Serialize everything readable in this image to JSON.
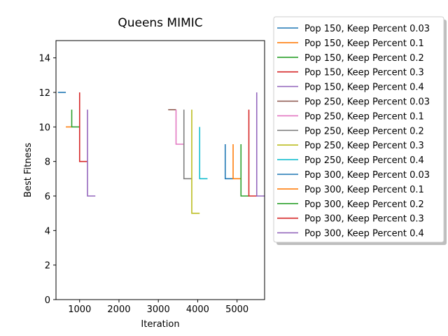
{
  "chart_data": {
    "type": "line",
    "title": "Queens MIMIC",
    "xlabel": "Iteration",
    "ylabel": "Best Fitness",
    "xlim": [
      400,
      5700
    ],
    "ylim": [
      0,
      15
    ],
    "xticks": [
      1000,
      2000,
      3000,
      4000,
      5000
    ],
    "yticks": [
      0,
      2,
      4,
      6,
      8,
      10,
      12,
      14
    ],
    "grid": false,
    "legend_position": "outside-right",
    "series": [
      {
        "name": "Pop 150, Keep Percent 0.03",
        "color": "#1f77b4",
        "x": [
          450,
          650
        ],
        "y": [
          12,
          12
        ]
      },
      {
        "name": "Pop 150, Keep Percent 0.1",
        "color": "#ff7f0e",
        "x": [
          650,
          800
        ],
        "y": [
          10,
          10
        ]
      },
      {
        "name": "Pop 150, Keep Percent 0.2",
        "color": "#2ca02c",
        "x": [
          800,
          800,
          1000
        ],
        "y": [
          11,
          10,
          10
        ]
      },
      {
        "name": "Pop 150, Keep Percent 0.3",
        "color": "#d62728",
        "x": [
          1000,
          1000,
          1200
        ],
        "y": [
          12,
          8,
          8
        ]
      },
      {
        "name": "Pop 150, Keep Percent 0.4",
        "color": "#9467bd",
        "x": [
          1200,
          1200,
          1400
        ],
        "y": [
          11,
          6,
          6
        ]
      },
      {
        "name": "Pop 250, Keep Percent 0.03",
        "color": "#8c564b",
        "x": [
          3250,
          3450
        ],
        "y": [
          11,
          11
        ]
      },
      {
        "name": "Pop 250, Keep Percent 0.1",
        "color": "#e377c2",
        "x": [
          3450,
          3450,
          3650
        ],
        "y": [
          11,
          9,
          9
        ]
      },
      {
        "name": "Pop 250, Keep Percent 0.2",
        "color": "#7f7f7f",
        "x": [
          3650,
          3650,
          3850
        ],
        "y": [
          11,
          7,
          7
        ]
      },
      {
        "name": "Pop 250, Keep Percent 0.3",
        "color": "#bcbd22",
        "x": [
          3850,
          3850,
          4050
        ],
        "y": [
          11,
          5,
          5
        ]
      },
      {
        "name": "Pop 250, Keep Percent 0.4",
        "color": "#17becf",
        "x": [
          4050,
          4050,
          4250
        ],
        "y": [
          10,
          7,
          7
        ]
      },
      {
        "name": "Pop 300, Keep Percent 0.03",
        "color": "#1f77b4",
        "x": [
          4700,
          4700,
          4900
        ],
        "y": [
          9,
          7,
          7
        ]
      },
      {
        "name": "Pop 300, Keep Percent 0.1",
        "color": "#ff7f0e",
        "x": [
          4900,
          4900,
          5100
        ],
        "y": [
          9,
          7,
          7
        ]
      },
      {
        "name": "Pop 300, Keep Percent 0.2",
        "color": "#2ca02c",
        "x": [
          5100,
          5100,
          5300
        ],
        "y": [
          9,
          6,
          6
        ]
      },
      {
        "name": "Pop 300, Keep Percent 0.3",
        "color": "#d62728",
        "x": [
          5300,
          5300,
          5500
        ],
        "y": [
          11,
          6,
          6
        ]
      },
      {
        "name": "Pop 300, Keep Percent 0.4",
        "color": "#9467bd",
        "x": [
          5500,
          5500,
          5700
        ],
        "y": [
          12,
          6,
          6
        ]
      }
    ]
  }
}
